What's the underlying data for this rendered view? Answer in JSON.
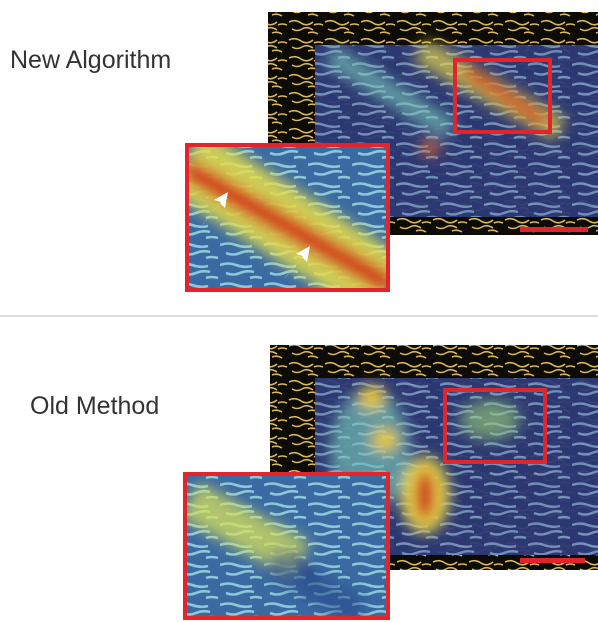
{
  "panels": [
    {
      "label": "New Algorithm"
    },
    {
      "label": "Old Method"
    }
  ]
}
